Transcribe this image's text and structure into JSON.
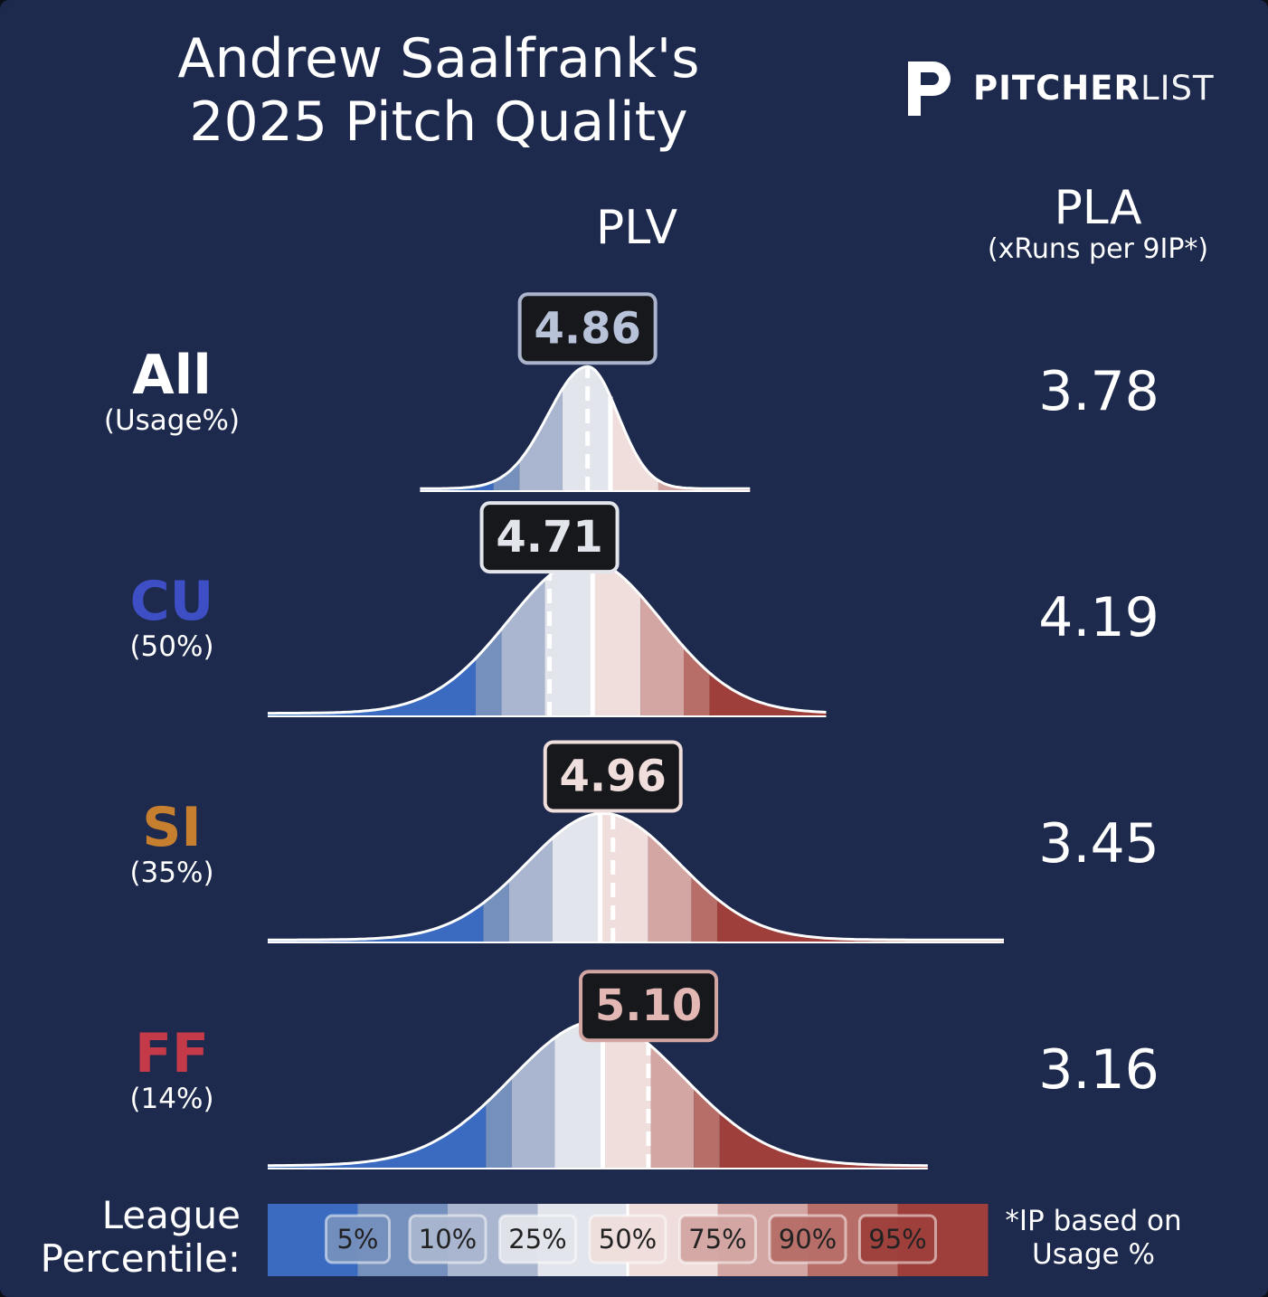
{
  "header": {
    "title_line1": "Andrew Saalfrank's",
    "title_line2": "2025 Pitch Quality",
    "logo_bold": "PITCHER",
    "logo_thin": "LIST"
  },
  "columns": {
    "plv": "PLV",
    "pla": "PLA",
    "pla_sub": "(xRuns per 9IP*)"
  },
  "legend": {
    "title_line1": "League",
    "title_line2": "Percentile:",
    "note_line1": "*IP based on",
    "note_line2": "Usage %",
    "colors": [
      "#3a6bc1",
      "#7590bd",
      "#aab6cf",
      "#e3e5ec",
      "#efdedc",
      "#d3a6a3",
      "#b76e68",
      "#9e3f3b"
    ]
  },
  "chart_data": {
    "type": "area",
    "title": "Andrew Saalfrank's 2025 Pitch Quality",
    "xlabel": "PLV",
    "percentile_labels": [
      "5%",
      "10%",
      "25%",
      "50%",
      "75%",
      "90%",
      "95%"
    ],
    "rows": [
      {
        "pitch": "All",
        "usage": "(Usage%)",
        "plv": 4.86,
        "plv_label": "4.86",
        "pla": "3.78",
        "label_color": "#ffffff",
        "badge_border": "#aab4cc",
        "badge_text": "#b8c2d8",
        "dist_min": 4.2,
        "dist_max": 5.5,
        "mean": 4.86,
        "sd": 0.12,
        "skew": -0.3,
        "league_median": 4.95
      },
      {
        "pitch": "CU",
        "usage": "(50%)",
        "plv": 4.71,
        "plv_label": "4.71",
        "pla": "4.19",
        "label_color": "#3e4fc6",
        "badge_border": "#e3e5ec",
        "badge_text": "#e3e5ec",
        "dist_min": 3.6,
        "dist_max": 5.8,
        "mean": 4.85,
        "sd": 0.3,
        "skew": 0.0,
        "league_median": 4.88
      },
      {
        "pitch": "SI",
        "usage": "(35%)",
        "plv": 4.96,
        "plv_label": "4.96",
        "pla": "3.45",
        "label_color": "#c57f2f",
        "badge_border": "#efdedc",
        "badge_text": "#efdedc",
        "dist_min": 3.6,
        "dist_max": 6.5,
        "mean": 4.92,
        "sd": 0.3,
        "skew": 0.0,
        "league_median": 4.91
      },
      {
        "pitch": "FF",
        "usage": "(14%)",
        "plv": 5.1,
        "plv_label": "5.10",
        "pla": "3.16",
        "label_color": "#c43a48",
        "badge_border": "#d3a6a3",
        "badge_text": "#e3b7b3",
        "dist_min": 3.6,
        "dist_max": 6.2,
        "mean": 4.9,
        "sd": 0.34,
        "skew": 0.0,
        "league_median": 4.92
      }
    ]
  }
}
